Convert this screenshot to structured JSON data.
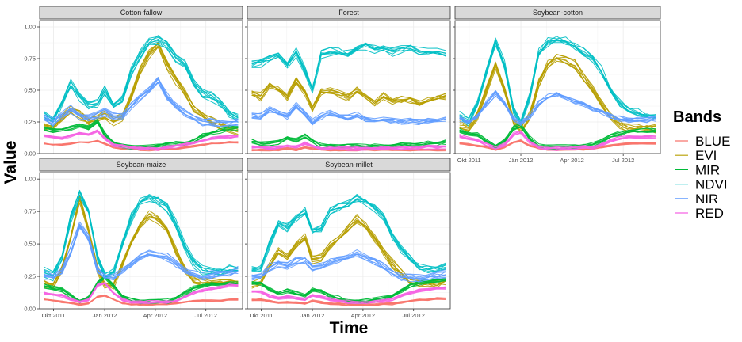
{
  "chart_data": {
    "type": "line",
    "xlabel": "Time",
    "ylabel": "Value",
    "ylim": [
      0,
      1.05
    ],
    "yticks": [
      0.0,
      0.25,
      0.5,
      0.75,
      1.0
    ],
    "ytick_labels": [
      "0.00",
      "0.25",
      "0.50",
      "0.75",
      "1.00"
    ],
    "xlim": [
      "2011-09-06",
      "2012-09-05"
    ],
    "xticks": [
      "2011-10-01",
      "2012-01-01",
      "2012-04-01",
      "2012-07-01"
    ],
    "xtick_labels": [
      "Okt 2011",
      "Jän 2012",
      "Apr 2012",
      "Jul 2012"
    ],
    "grid": true,
    "legend": {
      "title": "Bands",
      "position": "right",
      "entries": [
        {
          "name": "BLUE",
          "color": "#F8766D"
        },
        {
          "name": "EVI",
          "color": "#B79F00"
        },
        {
          "name": "MIR",
          "color": "#00BA38"
        },
        {
          "name": "NDVI",
          "color": "#00BFC4"
        },
        {
          "name": "NIR",
          "color": "#619CFF"
        },
        {
          "name": "RED",
          "color": "#F564E3"
        }
      ]
    },
    "x": [
      "2011-09-14",
      "2011-09-30",
      "2011-10-16",
      "2011-11-01",
      "2011-11-17",
      "2011-12-03",
      "2011-12-19",
      "2012-01-01",
      "2012-01-17",
      "2012-02-02",
      "2012-02-18",
      "2012-03-05",
      "2012-03-21",
      "2012-04-06",
      "2012-04-22",
      "2012-05-08",
      "2012-05-24",
      "2012-06-09",
      "2012-06-25",
      "2012-07-11",
      "2012-07-27",
      "2012-08-12",
      "2012-08-28"
    ],
    "facets": [
      {
        "name": "Cotton-fallow",
        "series": [
          {
            "name": "NDVI",
            "values": [
              0.3,
              0.25,
              0.4,
              0.55,
              0.45,
              0.38,
              0.4,
              0.5,
              0.38,
              0.42,
              0.65,
              0.78,
              0.88,
              0.9,
              0.85,
              0.75,
              0.7,
              0.55,
              0.48,
              0.45,
              0.4,
              0.32,
              0.28
            ]
          },
          {
            "name": "EVI",
            "values": [
              0.22,
              0.2,
              0.28,
              0.35,
              0.3,
              0.25,
              0.28,
              0.3,
              0.25,
              0.28,
              0.45,
              0.65,
              0.78,
              0.85,
              0.7,
              0.58,
              0.48,
              0.35,
              0.3,
              0.25,
              0.22,
              0.2,
              0.18
            ]
          },
          {
            "name": "NIR",
            "values": [
              0.28,
              0.25,
              0.3,
              0.35,
              0.3,
              0.28,
              0.3,
              0.33,
              0.3,
              0.3,
              0.38,
              0.45,
              0.5,
              0.58,
              0.45,
              0.38,
              0.32,
              0.28,
              0.25,
              0.25,
              0.24,
              0.24,
              0.25
            ]
          },
          {
            "name": "MIR",
            "values": [
              0.2,
              0.18,
              0.18,
              0.2,
              0.22,
              0.2,
              0.25,
              0.15,
              0.08,
              0.06,
              0.05,
              0.05,
              0.05,
              0.06,
              0.07,
              0.08,
              0.08,
              0.1,
              0.14,
              0.16,
              0.18,
              0.2,
              0.2
            ]
          },
          {
            "name": "RED",
            "values": [
              0.14,
              0.13,
              0.12,
              0.14,
              0.16,
              0.15,
              0.18,
              0.12,
              0.07,
              0.06,
              0.05,
              0.04,
              0.04,
              0.04,
              0.05,
              0.06,
              0.07,
              0.08,
              0.1,
              0.12,
              0.13,
              0.13,
              0.14
            ]
          },
          {
            "name": "BLUE",
            "values": [
              0.08,
              0.07,
              0.07,
              0.08,
              0.09,
              0.09,
              0.1,
              0.08,
              0.05,
              0.04,
              0.04,
              0.03,
              0.03,
              0.03,
              0.04,
              0.04,
              0.05,
              0.06,
              0.07,
              0.08,
              0.08,
              0.09,
              0.09
            ]
          }
        ]
      },
      {
        "name": "Forest",
        "series": [
          {
            "name": "NDVI",
            "values": [
              0.7,
              0.72,
              0.75,
              0.78,
              0.7,
              0.8,
              0.65,
              0.5,
              0.78,
              0.8,
              0.8,
              0.78,
              0.82,
              0.85,
              0.82,
              0.83,
              0.8,
              0.82,
              0.83,
              0.8,
              0.8,
              0.8,
              0.78
            ]
          },
          {
            "name": "EVI",
            "values": [
              0.48,
              0.45,
              0.55,
              0.5,
              0.45,
              0.58,
              0.48,
              0.35,
              0.5,
              0.5,
              0.48,
              0.45,
              0.5,
              0.45,
              0.4,
              0.45,
              0.42,
              0.42,
              0.43,
              0.4,
              0.42,
              0.44,
              0.45
            ]
          },
          {
            "name": "NIR",
            "values": [
              0.3,
              0.3,
              0.35,
              0.32,
              0.3,
              0.38,
              0.32,
              0.25,
              0.3,
              0.32,
              0.3,
              0.28,
              0.3,
              0.28,
              0.26,
              0.27,
              0.26,
              0.26,
              0.26,
              0.25,
              0.26,
              0.27,
              0.27
            ]
          },
          {
            "name": "MIR",
            "values": [
              0.1,
              0.08,
              0.08,
              0.09,
              0.12,
              0.1,
              0.14,
              0.1,
              0.06,
              0.06,
              0.06,
              0.06,
              0.06,
              0.06,
              0.06,
              0.06,
              0.06,
              0.07,
              0.07,
              0.07,
              0.08,
              0.08,
              0.09
            ]
          },
          {
            "name": "RED",
            "values": [
              0.05,
              0.05,
              0.04,
              0.05,
              0.06,
              0.05,
              0.08,
              0.06,
              0.04,
              0.04,
              0.04,
              0.04,
              0.04,
              0.04,
              0.04,
              0.04,
              0.04,
              0.04,
              0.04,
              0.04,
              0.05,
              0.05,
              0.05
            ]
          },
          {
            "name": "BLUE",
            "values": [
              0.03,
              0.03,
              0.03,
              0.03,
              0.04,
              0.03,
              0.05,
              0.04,
              0.03,
              0.03,
              0.03,
              0.03,
              0.03,
              0.03,
              0.03,
              0.03,
              0.03,
              0.03,
              0.03,
              0.03,
              0.03,
              0.03,
              0.03
            ]
          }
        ]
      },
      {
        "name": "Soybean-cotton",
        "series": [
          {
            "name": "NDVI",
            "values": [
              0.3,
              0.25,
              0.4,
              0.65,
              0.88,
              0.7,
              0.35,
              0.25,
              0.45,
              0.8,
              0.88,
              0.9,
              0.88,
              0.85,
              0.8,
              0.75,
              0.65,
              0.5,
              0.4,
              0.35,
              0.32,
              0.3,
              0.3
            ]
          },
          {
            "name": "EVI",
            "values": [
              0.22,
              0.2,
              0.3,
              0.5,
              0.7,
              0.5,
              0.25,
              0.18,
              0.3,
              0.55,
              0.7,
              0.75,
              0.73,
              0.7,
              0.6,
              0.5,
              0.38,
              0.28,
              0.22,
              0.2,
              0.2,
              0.2,
              0.2
            ]
          },
          {
            "name": "NIR",
            "values": [
              0.28,
              0.25,
              0.3,
              0.4,
              0.48,
              0.4,
              0.28,
              0.25,
              0.3,
              0.4,
              0.45,
              0.48,
              0.45,
              0.42,
              0.4,
              0.36,
              0.33,
              0.3,
              0.28,
              0.27,
              0.27,
              0.27,
              0.28
            ]
          },
          {
            "name": "MIR",
            "values": [
              0.18,
              0.16,
              0.15,
              0.1,
              0.06,
              0.1,
              0.2,
              0.22,
              0.12,
              0.06,
              0.05,
              0.05,
              0.05,
              0.05,
              0.06,
              0.07,
              0.1,
              0.14,
              0.16,
              0.18,
              0.18,
              0.18,
              0.18
            ]
          },
          {
            "name": "RED",
            "values": [
              0.14,
              0.12,
              0.1,
              0.07,
              0.04,
              0.07,
              0.15,
              0.17,
              0.09,
              0.05,
              0.04,
              0.04,
              0.04,
              0.04,
              0.05,
              0.05,
              0.07,
              0.1,
              0.12,
              0.13,
              0.13,
              0.13,
              0.13
            ]
          },
          {
            "name": "BLUE",
            "values": [
              0.08,
              0.07,
              0.06,
              0.05,
              0.03,
              0.05,
              0.09,
              0.1,
              0.06,
              0.04,
              0.03,
              0.03,
              0.03,
              0.03,
              0.03,
              0.04,
              0.05,
              0.06,
              0.07,
              0.08,
              0.08,
              0.08,
              0.08
            ]
          }
        ]
      },
      {
        "name": "Soybean-maize",
        "series": [
          {
            "name": "NDVI",
            "values": [
              0.28,
              0.25,
              0.4,
              0.7,
              0.88,
              0.75,
              0.4,
              0.25,
              0.28,
              0.5,
              0.7,
              0.82,
              0.85,
              0.83,
              0.78,
              0.65,
              0.48,
              0.35,
              0.3,
              0.28,
              0.28,
              0.3,
              0.3
            ]
          },
          {
            "name": "EVI",
            "values": [
              0.2,
              0.18,
              0.3,
              0.55,
              0.85,
              0.6,
              0.3,
              0.18,
              0.18,
              0.35,
              0.5,
              0.65,
              0.72,
              0.68,
              0.6,
              0.45,
              0.3,
              0.22,
              0.2,
              0.2,
              0.2,
              0.2,
              0.2
            ]
          },
          {
            "name": "NIR",
            "values": [
              0.26,
              0.25,
              0.3,
              0.45,
              0.65,
              0.55,
              0.3,
              0.25,
              0.25,
              0.3,
              0.35,
              0.4,
              0.43,
              0.42,
              0.4,
              0.35,
              0.3,
              0.27,
              0.25,
              0.26,
              0.27,
              0.28,
              0.3
            ]
          },
          {
            "name": "MIR",
            "values": [
              0.18,
              0.16,
              0.15,
              0.1,
              0.06,
              0.09,
              0.2,
              0.25,
              0.18,
              0.1,
              0.07,
              0.06,
              0.06,
              0.06,
              0.06,
              0.08,
              0.12,
              0.16,
              0.18,
              0.19,
              0.19,
              0.2,
              0.2
            ]
          },
          {
            "name": "RED",
            "values": [
              0.12,
              0.11,
              0.1,
              0.07,
              0.05,
              0.07,
              0.18,
              0.2,
              0.12,
              0.07,
              0.05,
              0.05,
              0.05,
              0.05,
              0.05,
              0.06,
              0.09,
              0.12,
              0.14,
              0.15,
              0.16,
              0.18,
              0.18
            ]
          },
          {
            "name": "BLUE",
            "values": [
              0.07,
              0.06,
              0.05,
              0.04,
              0.03,
              0.04,
              0.09,
              0.1,
              0.07,
              0.04,
              0.03,
              0.03,
              0.03,
              0.03,
              0.03,
              0.04,
              0.05,
              0.06,
              0.06,
              0.06,
              0.06,
              0.07,
              0.07
            ]
          }
        ]
      },
      {
        "name": "Soybean-millet",
        "series": [
          {
            "name": "NDVI",
            "values": [
              0.3,
              0.3,
              0.5,
              0.65,
              0.62,
              0.7,
              0.75,
              0.6,
              0.62,
              0.75,
              0.78,
              0.8,
              0.85,
              0.82,
              0.78,
              0.7,
              0.55,
              0.45,
              0.38,
              0.32,
              0.3,
              0.3,
              0.32
            ]
          },
          {
            "name": "EVI",
            "values": [
              0.2,
              0.2,
              0.35,
              0.45,
              0.4,
              0.5,
              0.55,
              0.38,
              0.4,
              0.5,
              0.55,
              0.62,
              0.7,
              0.65,
              0.55,
              0.45,
              0.35,
              0.28,
              0.22,
              0.2,
              0.2,
              0.2,
              0.22
            ]
          },
          {
            "name": "NIR",
            "values": [
              0.25,
              0.25,
              0.32,
              0.35,
              0.33,
              0.37,
              0.38,
              0.32,
              0.33,
              0.36,
              0.38,
              0.4,
              0.42,
              0.4,
              0.37,
              0.33,
              0.28,
              0.25,
              0.24,
              0.24,
              0.25,
              0.26,
              0.27
            ]
          },
          {
            "name": "MIR",
            "values": [
              0.2,
              0.2,
              0.15,
              0.12,
              0.14,
              0.12,
              0.1,
              0.15,
              0.14,
              0.1,
              0.08,
              0.06,
              0.06,
              0.06,
              0.07,
              0.08,
              0.1,
              0.14,
              0.18,
              0.2,
              0.21,
              0.22,
              0.22
            ]
          },
          {
            "name": "RED",
            "values": [
              0.13,
              0.13,
              0.1,
              0.08,
              0.09,
              0.08,
              0.07,
              0.1,
              0.09,
              0.07,
              0.06,
              0.05,
              0.05,
              0.05,
              0.05,
              0.06,
              0.07,
              0.1,
              0.12,
              0.14,
              0.15,
              0.16,
              0.16
            ]
          },
          {
            "name": "BLUE",
            "values": [
              0.07,
              0.07,
              0.06,
              0.05,
              0.05,
              0.05,
              0.04,
              0.06,
              0.05,
              0.04,
              0.04,
              0.03,
              0.03,
              0.03,
              0.03,
              0.04,
              0.04,
              0.05,
              0.06,
              0.07,
              0.07,
              0.08,
              0.08
            ]
          }
        ]
      }
    ]
  }
}
